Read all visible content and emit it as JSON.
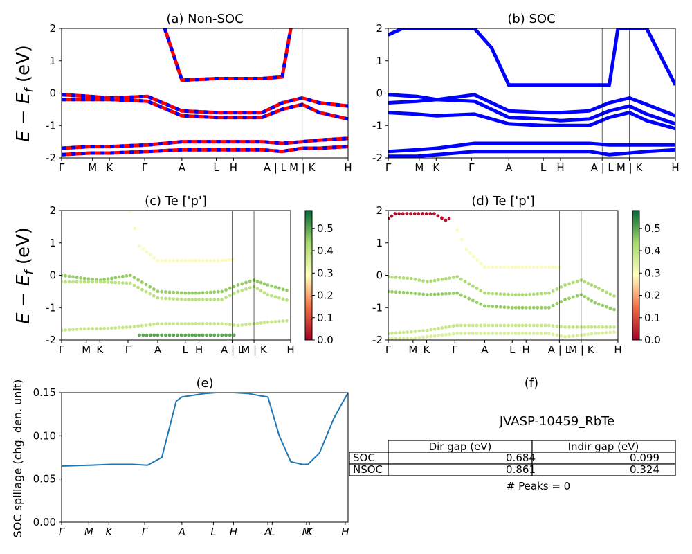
{
  "figure": {
    "ylabel_energy": "E − E_f (eV)",
    "ylabel_spillage": "SOC spillage (chg. den. unit)",
    "kpath_labels": [
      "Γ",
      "M",
      "K",
      "Γ",
      "A",
      "L",
      "H",
      "A | L",
      "M | K",
      "H"
    ],
    "spillage_kpath_labels": [
      "Γ",
      "M",
      "K",
      "Γ",
      "A",
      "L",
      "H",
      "A",
      "L",
      "M",
      "K",
      "H"
    ]
  },
  "colors": {
    "nsoc_band": "#ff0000",
    "soc_band": "#0000ff",
    "spillage_line": "#1f77b4",
    "colormap_low": "#a50026",
    "colormap_mid": "#ffffbf",
    "colormap_high": "#006837"
  },
  "chart_data": [
    {
      "id": "a",
      "type": "line",
      "title": "(a) Non-SOC",
      "ylim": [
        -2,
        2
      ],
      "yticks": [
        -2,
        -1,
        0,
        1,
        2
      ],
      "series_description": "spin-up (red) and spin-down (blue) band structure, overlapping",
      "series": [
        {
          "name": "",
          "x": [
            0,
            0.1,
            0.17,
            0.3,
            0.42,
            0.54,
            0.6,
            0.7,
            0.77,
            0.84,
            0.9,
            1.0
          ],
          "y": [
            -0.05,
            -0.1,
            -0.15,
            -0.1,
            -0.55,
            -0.6,
            -0.6,
            -0.6,
            -0.3,
            -0.15,
            -0.3,
            -0.4
          ]
        },
        {
          "name": "",
          "x": [
            0,
            0.1,
            0.17,
            0.3,
            0.42,
            0.54,
            0.6,
            0.7,
            0.77,
            0.84,
            0.9,
            1.0
          ],
          "y": [
            -0.2,
            -0.2,
            -0.2,
            -0.25,
            -0.7,
            -0.75,
            -0.75,
            -0.75,
            -0.5,
            -0.35,
            -0.6,
            -0.8
          ]
        },
        {
          "name": "",
          "x": [
            0.36,
            0.42,
            0.54,
            0.6,
            0.7,
            0.77,
            0.8
          ],
          "y": [
            2.0,
            0.4,
            0.45,
            0.45,
            0.45,
            0.5,
            2.0
          ]
        },
        {
          "name": "",
          "x": [
            0,
            0.1,
            0.17,
            0.3,
            0.42,
            0.54,
            0.6,
            0.7,
            0.77,
            0.84,
            0.9,
            1.0
          ],
          "y": [
            -1.7,
            -1.65,
            -1.65,
            -1.6,
            -1.5,
            -1.5,
            -1.5,
            -1.5,
            -1.55,
            -1.5,
            -1.45,
            -1.4
          ]
        },
        {
          "name": "",
          "x": [
            0,
            0.1,
            0.17,
            0.3,
            0.42,
            0.54,
            0.6,
            0.7,
            0.77,
            0.84,
            0.9,
            1.0
          ],
          "y": [
            -1.9,
            -1.85,
            -1.85,
            -1.8,
            -1.75,
            -1.75,
            -1.75,
            -1.75,
            -1.8,
            -1.7,
            -1.7,
            -1.65
          ]
        }
      ]
    },
    {
      "id": "b",
      "type": "line",
      "title": "(b) SOC",
      "ylim": [
        -2,
        2
      ],
      "yticks": [
        -2,
        -1,
        0,
        1,
        2
      ],
      "series": [
        {
          "name": "",
          "x": [
            0,
            0.1,
            0.17,
            0.3,
            0.42,
            0.54,
            0.6,
            0.7,
            0.77,
            0.84,
            0.9,
            1.0
          ],
          "y": [
            -0.05,
            -0.1,
            -0.2,
            -0.05,
            -0.55,
            -0.6,
            -0.6,
            -0.55,
            -0.3,
            -0.15,
            -0.35,
            -0.7
          ]
        },
        {
          "name": "",
          "x": [
            0,
            0.1,
            0.17,
            0.3,
            0.42,
            0.54,
            0.6,
            0.7,
            0.77,
            0.84,
            0.9,
            1.0
          ],
          "y": [
            -0.3,
            -0.25,
            -0.2,
            -0.25,
            -0.75,
            -0.8,
            -0.85,
            -0.8,
            -0.55,
            -0.4,
            -0.65,
            -0.95
          ]
        },
        {
          "name": "",
          "x": [
            0,
            0.1,
            0.17,
            0.3,
            0.42,
            0.54,
            0.6,
            0.7,
            0.77,
            0.84,
            0.9,
            1.0
          ],
          "y": [
            -0.6,
            -0.65,
            -0.7,
            -0.65,
            -0.95,
            -1.0,
            -1.0,
            -1.0,
            -0.75,
            -0.6,
            -0.85,
            -1.1
          ]
        },
        {
          "name": "",
          "x": [
            0,
            0.05,
            0.3,
            0.36,
            0.42,
            0.54,
            0.6,
            0.7,
            0.77,
            0.8,
            0.9,
            1.0
          ],
          "y": [
            1.8,
            2.0,
            2.0,
            1.4,
            0.25,
            0.25,
            0.25,
            0.25,
            0.25,
            2.0,
            2.0,
            0.25
          ]
        },
        {
          "name": "",
          "x": [
            0,
            0.1,
            0.17,
            0.3,
            0.42,
            0.54,
            0.6,
            0.7,
            0.77,
            0.84,
            0.9,
            1.0
          ],
          "y": [
            -1.8,
            -1.75,
            -1.7,
            -1.55,
            -1.55,
            -1.55,
            -1.55,
            -1.55,
            -1.6,
            -1.6,
            -1.6,
            -1.6
          ]
        },
        {
          "name": "",
          "x": [
            0,
            0.1,
            0.17,
            0.3,
            0.42,
            0.54,
            0.6,
            0.7,
            0.77,
            0.84,
            0.9,
            1.0
          ],
          "y": [
            -1.95,
            -1.95,
            -1.9,
            -1.8,
            -1.8,
            -1.8,
            -1.8,
            -1.8,
            -1.9,
            -1.85,
            -1.8,
            -1.75
          ]
        }
      ]
    },
    {
      "id": "c",
      "type": "scatter",
      "title": "(c)  Te ['p']",
      "ylim": [
        -2,
        2
      ],
      "yticks": [
        -2,
        -1,
        0,
        1,
        2
      ],
      "colorbar": {
        "range": [
          0.0,
          0.58
        ],
        "ticks": [
          "0.0",
          "0.1",
          "0.2",
          "0.3",
          "0.4",
          "0.5"
        ]
      },
      "series": [
        {
          "name": "",
          "weight": 0.45,
          "x": [
            0,
            0.1,
            0.17,
            0.3,
            0.42,
            0.54,
            0.6,
            0.7,
            0.77,
            0.84,
            0.9,
            1.0
          ],
          "y": [
            0.0,
            -0.1,
            -0.15,
            0.0,
            -0.5,
            -0.55,
            -0.55,
            -0.5,
            -0.3,
            -0.15,
            -0.3,
            -0.5
          ]
        },
        {
          "name": "",
          "weight": 0.4,
          "x": [
            0,
            0.1,
            0.17,
            0.3,
            0.42,
            0.54,
            0.6,
            0.7,
            0.77,
            0.84,
            0.9,
            1.0
          ],
          "y": [
            -0.2,
            -0.2,
            -0.2,
            -0.25,
            -0.7,
            -0.75,
            -0.75,
            -0.75,
            -0.5,
            -0.35,
            -0.6,
            -0.8
          ]
        },
        {
          "name": "",
          "weight": 0.3,
          "x": [
            0.3,
            0.34,
            0.42,
            0.54,
            0.6,
            0.7,
            0.76
          ],
          "y": [
            2.0,
            0.9,
            0.45,
            0.45,
            0.45,
            0.45,
            0.5
          ]
        },
        {
          "name": "",
          "weight": 0.38,
          "x": [
            0,
            0.1,
            0.17,
            0.3,
            0.42,
            0.54,
            0.6,
            0.7,
            0.77,
            0.84,
            0.9,
            1.0
          ],
          "y": [
            -1.7,
            -1.65,
            -1.65,
            -1.6,
            -1.5,
            -1.5,
            -1.5,
            -1.5,
            -1.55,
            -1.5,
            -1.45,
            -1.4
          ]
        },
        {
          "name": "",
          "weight": 0.5,
          "x": [
            0.34,
            0.42,
            0.54,
            0.6,
            0.7,
            0.77
          ],
          "y": [
            -1.85,
            -1.85,
            -1.85,
            -1.85,
            -1.85,
            -1.85
          ]
        }
      ]
    },
    {
      "id": "d",
      "type": "scatter",
      "title": "(d) Te ['p']",
      "ylim": [
        -2,
        2
      ],
      "yticks": [
        -2,
        -1,
        0,
        1,
        2
      ],
      "colorbar": {
        "range": [
          0.0,
          0.58
        ],
        "ticks": [
          "0.0",
          "0.1",
          "0.2",
          "0.3",
          "0.4",
          "0.5"
        ]
      },
      "series": [
        {
          "name": "",
          "weight": 0.42,
          "x": [
            0,
            0.1,
            0.17,
            0.3,
            0.42,
            0.54,
            0.6,
            0.7,
            0.77,
            0.84,
            0.9,
            1.0
          ],
          "y": [
            -0.05,
            -0.1,
            -0.2,
            -0.05,
            -0.55,
            -0.6,
            -0.6,
            -0.55,
            -0.3,
            -0.15,
            -0.35,
            -0.7
          ]
        },
        {
          "name": "",
          "weight": 0.45,
          "x": [
            0,
            0.1,
            0.17,
            0.3,
            0.42,
            0.54,
            0.6,
            0.7,
            0.77,
            0.84,
            0.9,
            1.0
          ],
          "y": [
            -0.5,
            -0.55,
            -0.6,
            -0.55,
            -0.95,
            -1.0,
            -1.0,
            -1.0,
            -0.75,
            -0.6,
            -0.85,
            -1.1
          ]
        },
        {
          "name": "",
          "weight": 0.3,
          "x": [
            0.3,
            0.34,
            0.42,
            0.54,
            0.6,
            0.7,
            0.76
          ],
          "y": [
            1.4,
            0.8,
            0.25,
            0.25,
            0.25,
            0.25,
            0.25
          ]
        },
        {
          "name": "",
          "weight": 0.02,
          "x": [
            0,
            0.03,
            0.2,
            0.25,
            0.28
          ],
          "y": [
            1.75,
            1.9,
            1.9,
            1.7,
            1.8
          ]
        },
        {
          "name": "",
          "weight": 0.38,
          "x": [
            0,
            0.1,
            0.17,
            0.3,
            0.42,
            0.54,
            0.6,
            0.7,
            0.77,
            0.84,
            0.9,
            1.0
          ],
          "y": [
            -1.8,
            -1.75,
            -1.7,
            -1.55,
            -1.55,
            -1.55,
            -1.55,
            -1.55,
            -1.6,
            -1.6,
            -1.6,
            -1.6
          ]
        },
        {
          "name": "",
          "weight": 0.35,
          "x": [
            0,
            0.1,
            0.17,
            0.3,
            0.42,
            0.54,
            0.6,
            0.7,
            0.77,
            0.84,
            0.9,
            1.0
          ],
          "y": [
            -1.95,
            -1.95,
            -1.9,
            -1.8,
            -1.8,
            -1.8,
            -1.8,
            -1.8,
            -1.9,
            -1.85,
            -1.8,
            -1.75
          ]
        }
      ]
    },
    {
      "id": "e",
      "type": "line",
      "title": "(e)",
      "ylabel": "SOC spillage (chg. den. unit)",
      "ylim": [
        0.0,
        0.15
      ],
      "yticks": [
        "0.00",
        "0.05",
        "0.10",
        "0.15"
      ],
      "series": [
        {
          "name": "",
          "x": [
            0,
            0.1,
            0.17,
            0.25,
            0.3,
            0.35,
            0.4,
            0.42,
            0.5,
            0.54,
            0.6,
            0.65,
            0.7,
            0.72,
            0.76,
            0.8,
            0.84,
            0.86,
            0.9,
            0.95,
            1.0
          ],
          "y": [
            0.065,
            0.066,
            0.067,
            0.067,
            0.066,
            0.075,
            0.14,
            0.145,
            0.149,
            0.15,
            0.15,
            0.149,
            0.146,
            0.145,
            0.1,
            0.07,
            0.067,
            0.067,
            0.08,
            0.12,
            0.15
          ]
        }
      ]
    }
  ],
  "table_panel": {
    "title": "(f)",
    "material": "JVASP-10459_RbTe",
    "headers": [
      "",
      "Dir gap (eV)",
      "Indir gap (eV)"
    ],
    "rows": [
      [
        "SOC",
        "0.684",
        "0.099"
      ],
      [
        "NSOC",
        "0.861",
        "0.324"
      ]
    ],
    "peaks": "# Peaks = 0"
  }
}
